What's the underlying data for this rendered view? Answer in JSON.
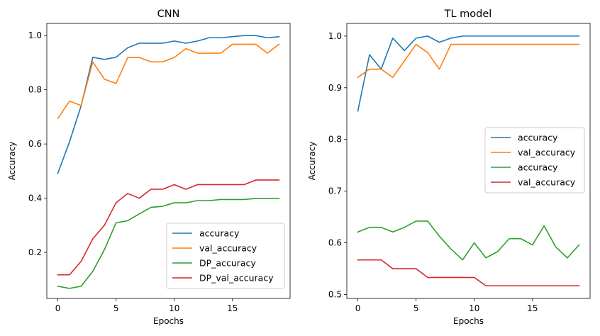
{
  "chart_data": [
    {
      "type": "line",
      "title": "CNN",
      "xlabel": "Epochs",
      "ylabel": "Accuracy",
      "x": [
        0,
        1,
        2,
        3,
        4,
        5,
        6,
        7,
        8,
        9,
        10,
        11,
        12,
        13,
        14,
        15,
        16,
        17,
        18,
        19
      ],
      "xlim": [
        -0.95,
        19.95
      ],
      "ylim": [
        0.03,
        1.045
      ],
      "xticks": [
        0,
        5,
        10,
        15
      ],
      "yticks": [
        0.2,
        0.4,
        0.6,
        0.8,
        1.0
      ],
      "xtick_labels": [
        "0",
        "5",
        "10",
        "15"
      ],
      "ytick_labels": [
        "0.2",
        "0.4",
        "0.6",
        "0.8",
        "1.0"
      ],
      "legend_loc": "lower right",
      "grid": false,
      "series": [
        {
          "name": "accuracy",
          "color": "#1f77b4",
          "values": [
            0.492,
            0.608,
            0.741,
            0.92,
            0.912,
            0.92,
            0.955,
            0.972,
            0.972,
            0.972,
            0.98,
            0.972,
            0.98,
            0.992,
            0.992,
            0.996,
            1.0,
            1.0,
            0.992,
            0.996
          ]
        },
        {
          "name": "val_accuracy",
          "color": "#ff7f0e",
          "values": [
            0.694,
            0.758,
            0.742,
            0.903,
            0.839,
            0.823,
            0.919,
            0.919,
            0.903,
            0.903,
            0.919,
            0.952,
            0.935,
            0.935,
            0.935,
            0.968,
            0.968,
            0.968,
            0.935,
            0.968
          ]
        },
        {
          "name": "DP_accuracy",
          "color": "#2ca02c",
          "values": [
            0.075,
            0.067,
            0.075,
            0.13,
            0.21,
            0.309,
            0.317,
            0.342,
            0.366,
            0.37,
            0.383,
            0.383,
            0.391,
            0.391,
            0.395,
            0.395,
            0.395,
            0.399,
            0.399,
            0.399
          ]
        },
        {
          "name": "DP_val_accuracy",
          "color": "#d62728",
          "values": [
            0.117,
            0.117,
            0.167,
            0.25,
            0.3,
            0.383,
            0.417,
            0.4,
            0.433,
            0.433,
            0.45,
            0.433,
            0.45,
            0.45,
            0.45,
            0.45,
            0.45,
            0.467,
            0.467,
            0.467
          ]
        }
      ]
    },
    {
      "type": "line",
      "title": "TL model",
      "xlabel": "Epochs",
      "ylabel": "Accuracy",
      "x": [
        0,
        1,
        2,
        3,
        4,
        5,
        6,
        7,
        8,
        9,
        10,
        11,
        12,
        13,
        14,
        15,
        16,
        17,
        18,
        19
      ],
      "xlim": [
        -0.95,
        19.95
      ],
      "ylim": [
        0.4925,
        1.0245
      ],
      "xticks": [
        0,
        5,
        10,
        15
      ],
      "yticks": [
        0.5,
        0.6,
        0.7,
        0.8,
        0.9,
        1.0
      ],
      "xtick_labels": [
        "0",
        "5",
        "10",
        "15"
      ],
      "ytick_labels": [
        "0.5",
        "0.6",
        "0.7",
        "0.8",
        "0.9",
        "1.0"
      ],
      "legend_loc": "center right",
      "grid": false,
      "series": [
        {
          "name": "accuracy",
          "color": "#1f77b4",
          "values": [
            0.855,
            0.964,
            0.936,
            0.996,
            0.972,
            0.996,
            1.0,
            0.988,
            0.996,
            1.0,
            1.0,
            1.0,
            1.0,
            1.0,
            1.0,
            1.0,
            1.0,
            1.0,
            1.0,
            1.0
          ]
        },
        {
          "name": "val_accuracy",
          "color": "#ff7f0e",
          "values": [
            0.92,
            0.936,
            0.936,
            0.92,
            0.952,
            0.984,
            0.968,
            0.936,
            0.984,
            0.984,
            0.984,
            0.984,
            0.984,
            0.984,
            0.984,
            0.984,
            0.984,
            0.984,
            0.984,
            0.984
          ]
        },
        {
          "name": "accuracy",
          "color": "#2ca02c",
          "values": [
            0.621,
            0.63,
            0.63,
            0.621,
            0.63,
            0.642,
            0.642,
            0.613,
            0.588,
            0.567,
            0.6,
            0.571,
            0.583,
            0.608,
            0.608,
            0.596,
            0.633,
            0.592,
            0.571,
            0.596
          ]
        },
        {
          "name": "val_accuracy",
          "color": "#d62728",
          "values": [
            0.567,
            0.567,
            0.567,
            0.55,
            0.55,
            0.55,
            0.533,
            0.533,
            0.533,
            0.533,
            0.533,
            0.517,
            0.517,
            0.517,
            0.517,
            0.517,
            0.517,
            0.517,
            0.517,
            0.517
          ]
        }
      ]
    }
  ]
}
